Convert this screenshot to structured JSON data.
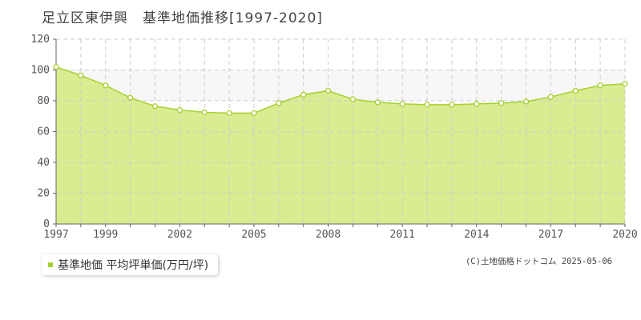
{
  "title": "足立区東伊興　基準地価推移[1997-2020]",
  "legend_label": "基準地価 平均坪単価(万円/坪)",
  "credit": "(C)土地価格ドットコム 2025-05-06",
  "colors": {
    "area_fill": "#d9ec92",
    "line": "#a6d02f",
    "band_fill": "#f7f6f8",
    "grid": "#cccccc"
  },
  "chart_data": {
    "type": "area",
    "title": "足立区東伊興　基準地価推移[1997-2020]",
    "xlabel": "",
    "ylabel": "",
    "xlim": [
      1997,
      2020
    ],
    "ylim": [
      0,
      120
    ],
    "y_ticks": [
      0,
      20,
      40,
      60,
      80,
      100,
      120
    ],
    "x_tick_labels": [
      "1997",
      "1999",
      "2002",
      "2005",
      "2008",
      "2011",
      "2014",
      "2017",
      "2020"
    ],
    "x_tick_values": [
      1997,
      1999,
      2002,
      2005,
      2008,
      2011,
      2014,
      2017,
      2020
    ],
    "grid": true,
    "legend_position": "bottom-left",
    "series": [
      {
        "name": "基準地価 平均坪単価(万円/坪)",
        "x": [
          1997,
          1998,
          1999,
          2000,
          2001,
          2002,
          2003,
          2004,
          2005,
          2006,
          2007,
          2008,
          2009,
          2010,
          2011,
          2012,
          2013,
          2014,
          2015,
          2016,
          2017,
          2018,
          2019,
          2020
        ],
        "values": [
          102,
          96.5,
          90,
          82,
          76.5,
          74,
          72.5,
          72,
          72,
          78.5,
          84,
          86.5,
          81,
          79,
          78,
          77.5,
          77.5,
          78,
          78.5,
          79.5,
          82.5,
          86.5,
          90,
          91
        ]
      }
    ]
  }
}
